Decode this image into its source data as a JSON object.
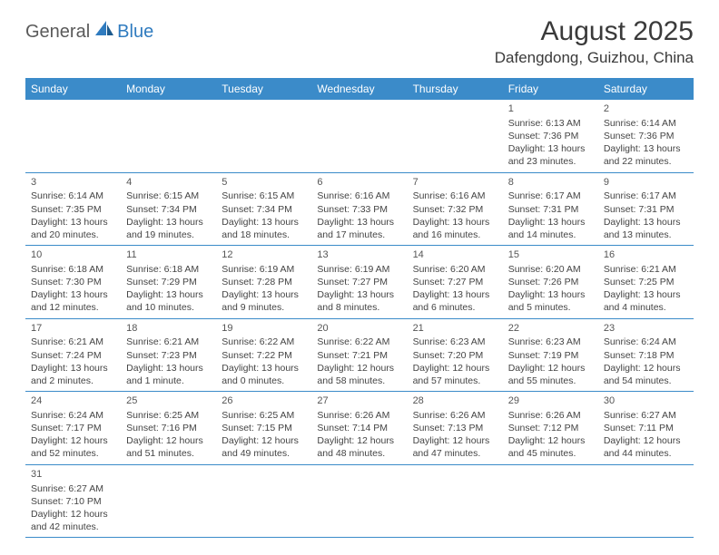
{
  "logo": {
    "text_general": "General",
    "text_blue": "Blue"
  },
  "title": "August 2025",
  "location": "Dafengdong, Guizhou, China",
  "colors": {
    "header_bg": "#3b8bc9",
    "header_text": "#ffffff",
    "text": "#444444",
    "border": "#3b8bc9",
    "logo_gray": "#5a5a5a",
    "logo_blue": "#2f7bbf"
  },
  "day_names": [
    "Sunday",
    "Monday",
    "Tuesday",
    "Wednesday",
    "Thursday",
    "Friday",
    "Saturday"
  ],
  "weeks": [
    [
      null,
      null,
      null,
      null,
      null,
      {
        "n": "1",
        "sr": "Sunrise: 6:13 AM",
        "ss": "Sunset: 7:36 PM",
        "dl": "Daylight: 13 hours and 23 minutes."
      },
      {
        "n": "2",
        "sr": "Sunrise: 6:14 AM",
        "ss": "Sunset: 7:36 PM",
        "dl": "Daylight: 13 hours and 22 minutes."
      }
    ],
    [
      {
        "n": "3",
        "sr": "Sunrise: 6:14 AM",
        "ss": "Sunset: 7:35 PM",
        "dl": "Daylight: 13 hours and 20 minutes."
      },
      {
        "n": "4",
        "sr": "Sunrise: 6:15 AM",
        "ss": "Sunset: 7:34 PM",
        "dl": "Daylight: 13 hours and 19 minutes."
      },
      {
        "n": "5",
        "sr": "Sunrise: 6:15 AM",
        "ss": "Sunset: 7:34 PM",
        "dl": "Daylight: 13 hours and 18 minutes."
      },
      {
        "n": "6",
        "sr": "Sunrise: 6:16 AM",
        "ss": "Sunset: 7:33 PM",
        "dl": "Daylight: 13 hours and 17 minutes."
      },
      {
        "n": "7",
        "sr": "Sunrise: 6:16 AM",
        "ss": "Sunset: 7:32 PM",
        "dl": "Daylight: 13 hours and 16 minutes."
      },
      {
        "n": "8",
        "sr": "Sunrise: 6:17 AM",
        "ss": "Sunset: 7:31 PM",
        "dl": "Daylight: 13 hours and 14 minutes."
      },
      {
        "n": "9",
        "sr": "Sunrise: 6:17 AM",
        "ss": "Sunset: 7:31 PM",
        "dl": "Daylight: 13 hours and 13 minutes."
      }
    ],
    [
      {
        "n": "10",
        "sr": "Sunrise: 6:18 AM",
        "ss": "Sunset: 7:30 PM",
        "dl": "Daylight: 13 hours and 12 minutes."
      },
      {
        "n": "11",
        "sr": "Sunrise: 6:18 AM",
        "ss": "Sunset: 7:29 PM",
        "dl": "Daylight: 13 hours and 10 minutes."
      },
      {
        "n": "12",
        "sr": "Sunrise: 6:19 AM",
        "ss": "Sunset: 7:28 PM",
        "dl": "Daylight: 13 hours and 9 minutes."
      },
      {
        "n": "13",
        "sr": "Sunrise: 6:19 AM",
        "ss": "Sunset: 7:27 PM",
        "dl": "Daylight: 13 hours and 8 minutes."
      },
      {
        "n": "14",
        "sr": "Sunrise: 6:20 AM",
        "ss": "Sunset: 7:27 PM",
        "dl": "Daylight: 13 hours and 6 minutes."
      },
      {
        "n": "15",
        "sr": "Sunrise: 6:20 AM",
        "ss": "Sunset: 7:26 PM",
        "dl": "Daylight: 13 hours and 5 minutes."
      },
      {
        "n": "16",
        "sr": "Sunrise: 6:21 AM",
        "ss": "Sunset: 7:25 PM",
        "dl": "Daylight: 13 hours and 4 minutes."
      }
    ],
    [
      {
        "n": "17",
        "sr": "Sunrise: 6:21 AM",
        "ss": "Sunset: 7:24 PM",
        "dl": "Daylight: 13 hours and 2 minutes."
      },
      {
        "n": "18",
        "sr": "Sunrise: 6:21 AM",
        "ss": "Sunset: 7:23 PM",
        "dl": "Daylight: 13 hours and 1 minute."
      },
      {
        "n": "19",
        "sr": "Sunrise: 6:22 AM",
        "ss": "Sunset: 7:22 PM",
        "dl": "Daylight: 13 hours and 0 minutes."
      },
      {
        "n": "20",
        "sr": "Sunrise: 6:22 AM",
        "ss": "Sunset: 7:21 PM",
        "dl": "Daylight: 12 hours and 58 minutes."
      },
      {
        "n": "21",
        "sr": "Sunrise: 6:23 AM",
        "ss": "Sunset: 7:20 PM",
        "dl": "Daylight: 12 hours and 57 minutes."
      },
      {
        "n": "22",
        "sr": "Sunrise: 6:23 AM",
        "ss": "Sunset: 7:19 PM",
        "dl": "Daylight: 12 hours and 55 minutes."
      },
      {
        "n": "23",
        "sr": "Sunrise: 6:24 AM",
        "ss": "Sunset: 7:18 PM",
        "dl": "Daylight: 12 hours and 54 minutes."
      }
    ],
    [
      {
        "n": "24",
        "sr": "Sunrise: 6:24 AM",
        "ss": "Sunset: 7:17 PM",
        "dl": "Daylight: 12 hours and 52 minutes."
      },
      {
        "n": "25",
        "sr": "Sunrise: 6:25 AM",
        "ss": "Sunset: 7:16 PM",
        "dl": "Daylight: 12 hours and 51 minutes."
      },
      {
        "n": "26",
        "sr": "Sunrise: 6:25 AM",
        "ss": "Sunset: 7:15 PM",
        "dl": "Daylight: 12 hours and 49 minutes."
      },
      {
        "n": "27",
        "sr": "Sunrise: 6:26 AM",
        "ss": "Sunset: 7:14 PM",
        "dl": "Daylight: 12 hours and 48 minutes."
      },
      {
        "n": "28",
        "sr": "Sunrise: 6:26 AM",
        "ss": "Sunset: 7:13 PM",
        "dl": "Daylight: 12 hours and 47 minutes."
      },
      {
        "n": "29",
        "sr": "Sunrise: 6:26 AM",
        "ss": "Sunset: 7:12 PM",
        "dl": "Daylight: 12 hours and 45 minutes."
      },
      {
        "n": "30",
        "sr": "Sunrise: 6:27 AM",
        "ss": "Sunset: 7:11 PM",
        "dl": "Daylight: 12 hours and 44 minutes."
      }
    ],
    [
      {
        "n": "31",
        "sr": "Sunrise: 6:27 AM",
        "ss": "Sunset: 7:10 PM",
        "dl": "Daylight: 12 hours and 42 minutes."
      },
      null,
      null,
      null,
      null,
      null,
      null
    ]
  ]
}
